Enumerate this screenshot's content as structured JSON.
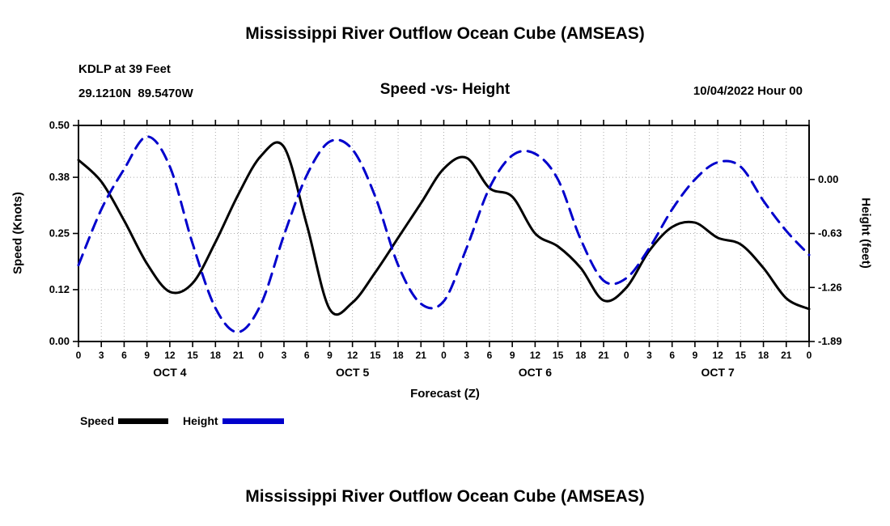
{
  "header": {
    "top_title": "Mississippi River Outflow Ocean Cube (AMSEAS)",
    "station": "KDLP at 39 Feet",
    "coordinates": "29.1210N  89.5470W",
    "subtitle": "Speed -vs- Height",
    "run_datetime": "10/04/2022 Hour 00"
  },
  "footer": {
    "bottom_title": "Mississippi River Outflow Ocean Cube (AMSEAS)"
  },
  "legend": {
    "speed_label": "Speed",
    "height_label": "Height",
    "speed_color": "#000000",
    "height_color": "#0000cc"
  },
  "chart_data": {
    "type": "line",
    "title": "Speed -vs- Height",
    "xlabel": "Forecast (Z)",
    "ylabel_left": "Speed (Knots)",
    "ylabel_right": "Height (feet)",
    "grid": true,
    "grid_color": "#aaaaaa",
    "x_range": [
      0,
      96
    ],
    "x_hours": [
      0,
      3,
      6,
      9,
      12,
      15,
      18,
      21,
      24,
      27,
      30,
      33,
      36,
      39,
      42,
      45,
      48,
      51,
      54,
      57,
      60,
      63,
      66,
      69,
      72,
      75,
      78,
      81,
      84,
      87,
      90,
      93,
      96
    ],
    "x_tick_labels": [
      "0",
      "3",
      "6",
      "9",
      "12",
      "15",
      "18",
      "21",
      "0",
      "3",
      "6",
      "9",
      "12",
      "15",
      "18",
      "21",
      "0",
      "3",
      "6",
      "9",
      "12",
      "15",
      "18",
      "21",
      "0",
      "3",
      "6",
      "9",
      "12",
      "15",
      "18",
      "21",
      "0"
    ],
    "day_labels": [
      {
        "label": "OCT 4",
        "hour": 12
      },
      {
        "label": "OCT 5",
        "hour": 36
      },
      {
        "label": "OCT 6",
        "hour": 60
      },
      {
        "label": "OCT 7",
        "hour": 84
      }
    ],
    "left_axis": {
      "range": [
        0,
        0.5
      ],
      "ticks": [
        0.0,
        0.12,
        0.25,
        0.38,
        0.5
      ],
      "tick_labels": [
        "0.00",
        "0.12",
        "0.25",
        "0.38",
        "0.50"
      ]
    },
    "right_axis": {
      "range": [
        -1.89,
        0.63
      ],
      "ticks": [
        0.0,
        -0.63,
        -1.26,
        -1.89
      ],
      "tick_labels": [
        "0.00",
        "-0.63",
        "-1.26",
        "-1.89"
      ]
    },
    "series": [
      {
        "name": "Speed",
        "axis": "left",
        "color": "#000000",
        "style": "solid",
        "values": [
          0.42,
          0.37,
          0.28,
          0.18,
          0.115,
          0.135,
          0.23,
          0.34,
          0.43,
          0.45,
          0.27,
          0.075,
          0.09,
          0.16,
          0.24,
          0.32,
          0.4,
          0.425,
          0.355,
          0.335,
          0.25,
          0.22,
          0.17,
          0.095,
          0.125,
          0.21,
          0.265,
          0.275,
          0.24,
          0.225,
          0.17,
          0.1,
          0.075
        ]
      },
      {
        "name": "Height",
        "axis": "right",
        "color": "#0000cc",
        "style": "dashed",
        "values": [
          -1.0,
          -0.35,
          0.12,
          0.5,
          0.15,
          -0.75,
          -1.5,
          -1.78,
          -1.45,
          -0.65,
          0.05,
          0.44,
          0.35,
          -0.2,
          -1.0,
          -1.45,
          -1.42,
          -0.8,
          -0.1,
          0.28,
          0.3,
          0.0,
          -0.7,
          -1.18,
          -1.15,
          -0.8,
          -0.35,
          0.0,
          0.2,
          0.15,
          -0.25,
          -0.6,
          -0.88
        ]
      }
    ]
  }
}
